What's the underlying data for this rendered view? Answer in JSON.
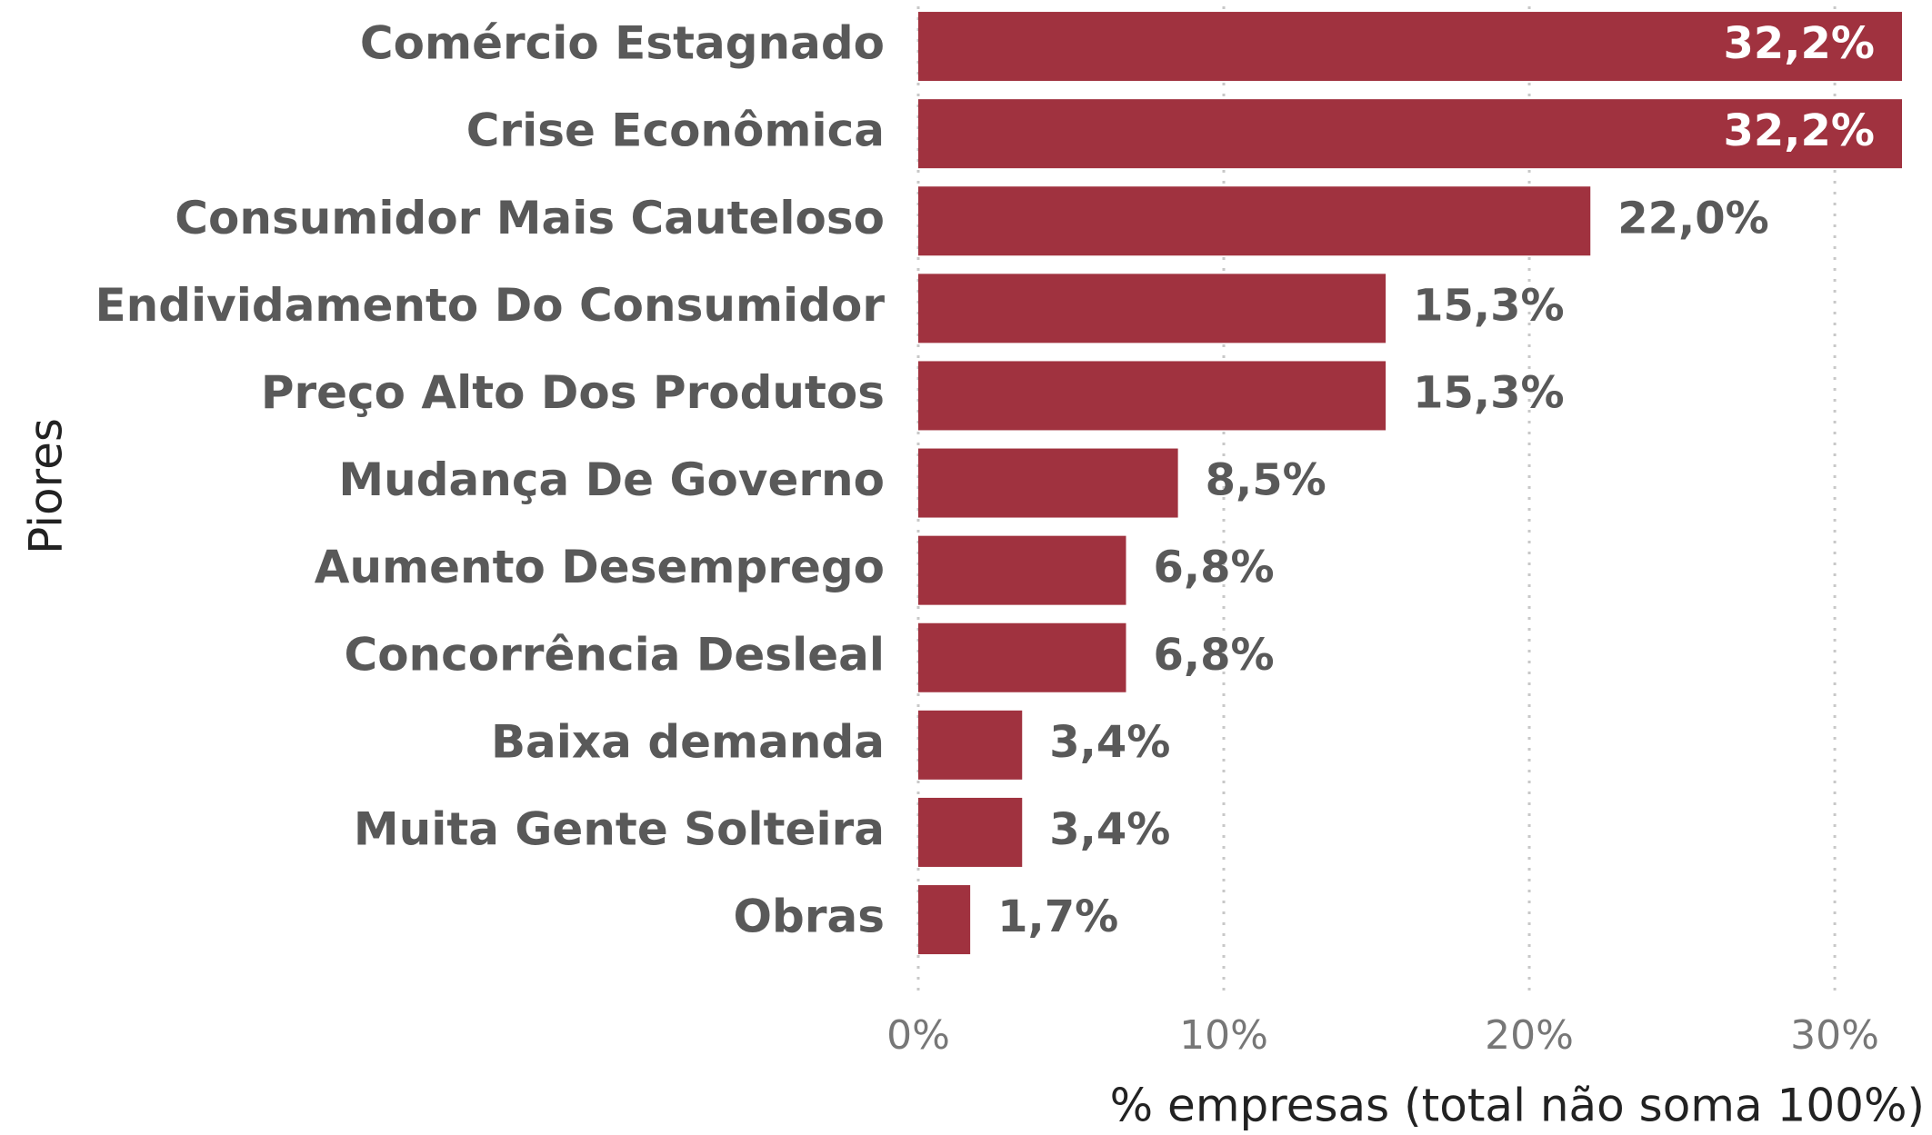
{
  "chart_data": {
    "type": "bar",
    "orientation": "horizontal",
    "xlabel": "% empresas (total não soma 100%)",
    "ylabel": "Piores",
    "categories": [
      "Comércio Estagnado",
      "Crise Econômica",
      "Consumidor Mais Cauteloso",
      "Endividamento Do Consumidor",
      "Preço Alto Dos Produtos",
      "Mudança De Governo",
      "Aumento Desemprego",
      "Concorrência Desleal",
      "Baixa demanda",
      "Muita Gente Solteira",
      "Obras"
    ],
    "values": [
      32.2,
      32.2,
      22.0,
      15.3,
      15.3,
      8.5,
      6.8,
      6.8,
      3.4,
      3.4,
      1.7
    ],
    "value_labels": [
      "32,2%",
      "32,2%",
      "22,0%",
      "15,3%",
      "15,3%",
      "8,5%",
      "6,8%",
      "6,8%",
      "3,4%",
      "3,4%",
      "1,7%"
    ],
    "color": "#a0323f",
    "xlim": [
      0,
      32.2
    ],
    "xticks": [
      {
        "value": 0,
        "label": "0%"
      },
      {
        "value": 10,
        "label": "10%"
      },
      {
        "value": 20,
        "label": "20%"
      },
      {
        "value": 30,
        "label": "30%"
      }
    ],
    "grid": true
  }
}
